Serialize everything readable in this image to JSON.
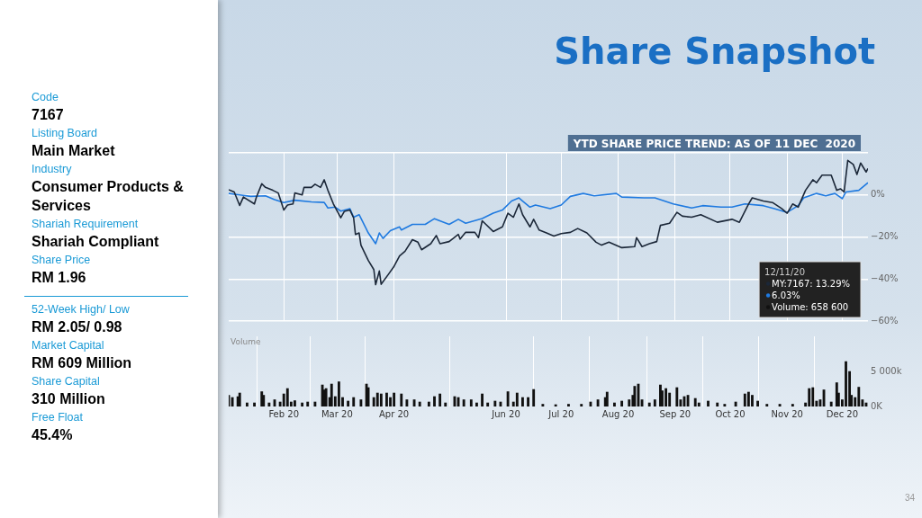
{
  "chart_data": [
    {
      "type": "other",
      "title": "Share Snapshot",
      "annotations": [
        "Code",
        "7167",
        "Listing Board",
        "Main Market",
        "Industry",
        "Consumer Products & Services",
        "Shariah Requirement",
        "Shariah Compliant",
        "Share Price",
        "RM 1.96",
        "52-Week High/ Low",
        "RM 2.05/ 0.98",
        "Market Capital",
        "RM 609 Million",
        "Share Capital",
        "310 Million",
        "Free Float",
        "45.4%",
        "34"
      ]
    },
    {
      "type": "line",
      "title": "YTD SHARE PRICE TREND: AS OF 11 DEC  2020",
      "xlim": [
        "2020-01-02",
        "2020-12-15"
      ],
      "xticks": [
        "2020-02-01",
        "2020-03-01",
        "2020-04-01",
        "2020-06-01",
        "2020-07-01",
        "2020-08-01",
        "2020-09-01",
        "2020-10-01",
        "2020-11-01",
        "2020-12-01"
      ],
      "ylim": [
        -60,
        20
      ],
      "yticks": [
        {
          "value": -60,
          "label": "−60%"
        },
        {
          "value": -40,
          "label": "−40%"
        },
        {
          "value": -20,
          "label": "−20%"
        },
        {
          "value": 0,
          "label": "0%"
        },
        {
          "value": 20,
          "label": null
        }
      ],
      "grid": true,
      "tick_labels": "y",
      "series": [
        {
          "color": "#1b2738",
          "x": [
            "2020-01-02",
            "2020-01-05",
            "2020-01-08",
            "2020-01-10",
            "2020-01-16",
            "2020-01-17",
            "2020-01-20",
            "2020-01-22",
            "2020-01-26",
            "2020-01-29",
            "2020-02-01",
            "2020-02-03",
            "2020-02-06",
            "2020-02-07",
            "2020-02-11",
            "2020-02-12",
            "2020-02-16",
            "2020-02-18",
            "2020-02-21",
            "2020-02-23",
            "2020-02-25",
            "2020-02-28",
            "2020-03-03",
            "2020-03-05",
            "2020-03-08",
            "2020-03-10",
            "2020-03-11",
            "2020-03-13",
            "2020-03-14",
            "2020-03-18",
            "2020-03-21",
            "2020-03-22",
            "2020-03-24",
            "2020-03-25",
            "2020-03-29",
            "2020-04-01",
            "2020-04-04",
            "2020-04-07",
            "2020-04-11",
            "2020-04-14",
            "2020-04-16",
            "2020-04-21",
            "2020-04-24",
            "2020-04-26",
            "2020-05-01",
            "2020-05-06",
            "2020-05-07",
            "2020-05-10",
            "2020-05-15",
            "2020-05-17",
            "2020-05-19",
            "2020-05-25",
            "2020-05-30",
            "2020-06-02",
            "2020-06-05",
            "2020-06-08",
            "2020-06-10",
            "2020-06-14",
            "2020-06-16",
            "2020-06-19",
            "2020-06-23",
            "2020-06-27",
            "2020-07-01",
            "2020-07-06",
            "2020-07-10",
            "2020-07-15",
            "2020-07-20",
            "2020-07-23",
            "2020-07-27",
            "2020-08-03",
            "2020-08-10",
            "2020-08-11",
            "2020-08-14",
            "2020-08-18",
            "2020-08-22",
            "2020-08-24",
            "2020-08-29",
            "2020-09-02",
            "2020-09-05",
            "2020-09-10",
            "2020-09-15",
            "2020-09-24",
            "2020-10-02",
            "2020-10-06",
            "2020-10-11",
            "2020-10-13",
            "2020-10-19",
            "2020-10-24",
            "2020-10-29",
            "2020-11-01",
            "2020-11-04",
            "2020-11-07",
            "2020-11-11",
            "2020-11-15",
            "2020-11-17",
            "2020-11-20",
            "2020-11-25",
            "2020-11-28",
            "2020-11-30",
            "2020-12-02",
            "2020-12-04",
            "2020-12-07",
            "2020-12-09",
            "2020-12-11",
            "2020-12-14",
            "2020-12-15"
          ],
          "values": [
            2.5,
            1.4,
            -5,
            -1,
            -4.3,
            -1.3,
            5.3,
            3.6,
            2.2,
            0.9,
            -7.2,
            -4.8,
            -4.3,
            0.9,
            0,
            3.6,
            3.6,
            5.1,
            3.6,
            7.2,
            2.2,
            -4.3,
            -10.9,
            -7.8,
            -7.2,
            -10.9,
            -18.8,
            -18.1,
            -23.9,
            -31.2,
            -35.5,
            -42.7,
            -36.2,
            -42.5,
            -37.7,
            -34,
            -29,
            -26.8,
            -21.3,
            -22.5,
            -26.1,
            -23.2,
            -19.3,
            -23.2,
            -22.2,
            -18.8,
            -21,
            -17.8,
            -17.8,
            -20.3,
            -12.3,
            -17.4,
            -15.2,
            -8.7,
            -10.6,
            -4.3,
            -9.4,
            -15.2,
            -11.6,
            -16.7,
            -18.1,
            -19.6,
            -18.4,
            -17.8,
            -16,
            -18.1,
            -22.5,
            -23.9,
            -22.5,
            -25.1,
            -24.6,
            -20.3,
            -24.6,
            -23.2,
            -22.2,
            -14.5,
            -13.5,
            -8.3,
            -10.1,
            -10.6,
            -9.4,
            -13,
            -11.6,
            -13,
            -4.3,
            -1.4,
            -2.9,
            -3.6,
            -6.5,
            -8.7,
            -4.3,
            -5.8,
            2.2,
            7.2,
            5.8,
            9.4,
            9.4,
            2.2,
            2.9,
            1.4,
            16.4,
            14.5,
            9.7,
            15.2,
            10.9,
            12.6
          ]
        },
        {
          "color": "#1f7ae0",
          "x": [
            "2020-01-02",
            "2020-01-08",
            "2020-01-14",
            "2020-01-22",
            "2020-01-27",
            "2020-02-01",
            "2020-02-07",
            "2020-02-16",
            "2020-02-23",
            "2020-02-25",
            "2020-02-29",
            "2020-03-03",
            "2020-03-08",
            "2020-03-10",
            "2020-03-13",
            "2020-03-18",
            "2020-03-22",
            "2020-03-24",
            "2020-03-26",
            "2020-03-30",
            "2020-04-04",
            "2020-04-05",
            "2020-04-11",
            "2020-04-18",
            "2020-04-23",
            "2020-05-01",
            "2020-05-06",
            "2020-05-10",
            "2020-05-19",
            "2020-05-25",
            "2020-05-30",
            "2020-06-04",
            "2020-06-08",
            "2020-06-10",
            "2020-06-14",
            "2020-06-17",
            "2020-06-25",
            "2020-07-01",
            "2020-07-06",
            "2020-07-13",
            "2020-07-19",
            "2020-07-31",
            "2020-08-03",
            "2020-08-15",
            "2020-08-21",
            "2020-08-31",
            "2020-09-10",
            "2020-09-16",
            "2020-09-26",
            "2020-10-02",
            "2020-10-09",
            "2020-10-19",
            "2020-10-25",
            "2020-11-01",
            "2020-11-07",
            "2020-11-10",
            "2020-11-17",
            "2020-11-22",
            "2020-11-27",
            "2020-12-01",
            "2020-12-03",
            "2020-12-10",
            "2020-12-15"
          ],
          "values": [
            0.7,
            0,
            -0.7,
            -0.4,
            -2.2,
            -3.6,
            -2.5,
            -3.3,
            -3.6,
            -6.2,
            -5.8,
            -7.7,
            -6.5,
            -10.6,
            -9.4,
            -18.1,
            -23.2,
            -18.1,
            -20.7,
            -17,
            -15.2,
            -16.7,
            -14,
            -14,
            -11.3,
            -14,
            -11.6,
            -13.5,
            -11.2,
            -8.7,
            -7.2,
            -2.9,
            -1.4,
            -2.9,
            -5.8,
            -4.8,
            -6.5,
            -4.8,
            -0.7,
            0.7,
            -0.4,
            0.7,
            -1,
            -1.4,
            -1.4,
            -4.3,
            -6.2,
            -5.1,
            -5.8,
            -5.8,
            -4.3,
            -5.1,
            -6.5,
            -8.3,
            -5.1,
            -1.4,
            0.7,
            -0.4,
            0.7,
            -1.8,
            1.4,
            2.2,
            5.8
          ]
        }
      ],
      "annotations": [
        "12/11/20",
        "MY:7167: 13.29%",
        "6.03%",
        "Volume: 658 600"
      ]
    },
    {
      "type": "bar",
      "ylabel": "Volume",
      "color": "#111111",
      "xlim": [
        "2020-01-02",
        "2020-12-15"
      ],
      "xticks": [
        {
          "value": "2020-02-01",
          "label": "Feb 20"
        },
        {
          "value": "2020-03-01",
          "label": "Mar 20"
        },
        {
          "value": "2020-04-01",
          "label": "Apr 20"
        },
        {
          "value": "2020-06-01",
          "label": "Jun 20"
        },
        {
          "value": "2020-07-01",
          "label": "Jul 20"
        },
        {
          "value": "2020-08-01",
          "label": "Aug 20"
        },
        {
          "value": "2020-09-01",
          "label": "Sep 20"
        },
        {
          "value": "2020-10-01",
          "label": "Oct 20"
        },
        {
          "value": "2020-11-01",
          "label": "Nov 20"
        },
        {
          "value": "2020-12-01",
          "label": "Dec 20"
        }
      ],
      "ylim": [
        0,
        10000
      ],
      "yticks": [
        {
          "value": 0,
          "label": "0K"
        },
        {
          "value": 5000,
          "label": "5 000k"
        }
      ],
      "grid": "x",
      "x": [
        "2020-01-02",
        "2020-01-04",
        "2020-01-07",
        "2020-01-08",
        "2020-01-12",
        "2020-01-16",
        "2020-01-20",
        "2020-01-21",
        "2020-01-24",
        "2020-01-27",
        "2020-01-30",
        "2020-02-01",
        "2020-02-03",
        "2020-02-05",
        "2020-02-07",
        "2020-02-11",
        "2020-02-14",
        "2020-02-18",
        "2020-02-22",
        "2020-02-23",
        "2020-02-24",
        "2020-02-26",
        "2020-02-27",
        "2020-02-29",
        "2020-03-02",
        "2020-03-04",
        "2020-03-07",
        "2020-03-10",
        "2020-03-14",
        "2020-03-17",
        "2020-03-18",
        "2020-03-21",
        "2020-03-23",
        "2020-03-25",
        "2020-03-28",
        "2020-03-30",
        "2020-04-01",
        "2020-04-05",
        "2020-04-08",
        "2020-04-12",
        "2020-04-15",
        "2020-04-20",
        "2020-04-23",
        "2020-04-26",
        "2020-04-29",
        "2020-05-04",
        "2020-05-06",
        "2020-05-09",
        "2020-05-13",
        "2020-05-16",
        "2020-05-19",
        "2020-05-22",
        "2020-05-26",
        "2020-05-29",
        "2020-06-02",
        "2020-06-05",
        "2020-06-07",
        "2020-06-10",
        "2020-06-13",
        "2020-06-16",
        "2020-06-21",
        "2020-06-28",
        "2020-07-05",
        "2020-07-12",
        "2020-07-17",
        "2020-07-21",
        "2020-07-25",
        "2020-07-26",
        "2020-07-30",
        "2020-08-03",
        "2020-08-07",
        "2020-08-09",
        "2020-08-10",
        "2020-08-12",
        "2020-08-14",
        "2020-08-18",
        "2020-08-21",
        "2020-08-24",
        "2020-08-25",
        "2020-08-27",
        "2020-08-29",
        "2020-09-02",
        "2020-09-04",
        "2020-09-06",
        "2020-09-08",
        "2020-09-12",
        "2020-09-14",
        "2020-09-19",
        "2020-09-24",
        "2020-09-28",
        "2020-10-04",
        "2020-10-09",
        "2020-10-11",
        "2020-10-13",
        "2020-10-16",
        "2020-10-21",
        "2020-10-28",
        "2020-11-04",
        "2020-11-11",
        "2020-11-13",
        "2020-11-15",
        "2020-11-17",
        "2020-11-19",
        "2020-11-21",
        "2020-11-25",
        "2020-11-28",
        "2020-11-29",
        "2020-12-01",
        "2020-12-03",
        "2020-12-05",
        "2020-12-06",
        "2020-12-08",
        "2020-12-10",
        "2020-12-12",
        "2020-12-14"
      ],
      "values": [
        1600,
        1280,
        1400,
        1920,
        510,
        510,
        2110,
        1600,
        510,
        960,
        640,
        1790,
        2560,
        640,
        830,
        510,
        640,
        640,
        3070,
        2370,
        2560,
        1280,
        3200,
        1410,
        3520,
        1280,
        770,
        1280,
        960,
        3200,
        2690,
        1280,
        1920,
        1790,
        1920,
        1280,
        1920,
        1790,
        960,
        960,
        640,
        640,
        1410,
        1790,
        510,
        1410,
        1280,
        960,
        960,
        510,
        1790,
        510,
        770,
        640,
        2110,
        640,
        1920,
        1280,
        1280,
        2430,
        320,
        260,
        320,
        320,
        640,
        960,
        1280,
        2050,
        510,
        770,
        960,
        1600,
        2880,
        3200,
        960,
        510,
        960,
        3070,
        2240,
        2560,
        1920,
        2690,
        960,
        1410,
        1600,
        1150,
        510,
        770,
        510,
        320,
        640,
        1790,
        2050,
        1600,
        770,
        320,
        320,
        320,
        510,
        2560,
        2690,
        770,
        960,
        2370,
        640,
        3390,
        1920,
        960,
        6400,
        4990,
        1600,
        1280,
        2750,
        960,
        510
      ]
    }
  ]
}
